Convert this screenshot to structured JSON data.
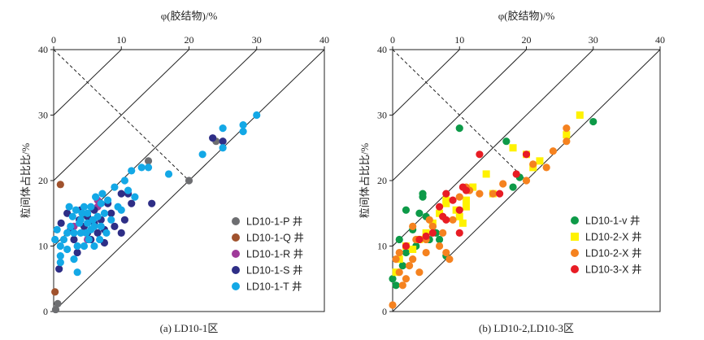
{
  "chart_data": [
    {
      "type": "scatter",
      "caption": "(a) LD10-1区",
      "xlabel": "φ(胶结物)/%",
      "ylabel": "粒间体占比比/%",
      "xlim": [
        0,
        40
      ],
      "ylim": [
        0,
        40
      ],
      "xticks": [
        "0",
        "10",
        "20",
        "30",
        "40"
      ],
      "yticks": [
        "0",
        "10",
        "20",
        "30",
        "40"
      ],
      "legend_position": "bottom-right",
      "series": [
        {
          "name": "LD10-1-P 井",
          "color": "#6d6e71",
          "shape": "circle",
          "points": [
            [
              0.3,
              0.3
            ],
            [
              0.6,
              1.2
            ],
            [
              14,
              23
            ],
            [
              20,
              20
            ],
            [
              24,
              26
            ]
          ]
        },
        {
          "name": "LD10-1-Q 井",
          "color": "#a0522d",
          "shape": "circle",
          "points": [
            [
              0.2,
              3
            ],
            [
              1,
              19.4
            ]
          ]
        },
        {
          "name": "LD10-1-R 井",
          "color": "#a03a9a",
          "shape": "circle",
          "points": [
            [
              3,
              13
            ],
            [
              5,
              11
            ],
            [
              6.5,
              16
            ],
            [
              6.5,
              17
            ]
          ]
        },
        {
          "name": "LD10-1-S 井",
          "color": "#2e2e86",
          "shape": "circle",
          "points": [
            [
              0.8,
              6.5
            ],
            [
              1.1,
              13.5
            ],
            [
              2,
              15
            ],
            [
              2.5,
              12.5
            ],
            [
              3,
              11
            ],
            [
              3.5,
              9
            ],
            [
              3.8,
              14
            ],
            [
              4,
              15.5
            ],
            [
              4.5,
              13
            ],
            [
              5,
              14.5
            ],
            [
              5,
              12
            ],
            [
              5.5,
              11
            ],
            [
              6,
              13.5
            ],
            [
              6,
              15.5
            ],
            [
              6.5,
              12
            ],
            [
              7,
              14
            ],
            [
              7.5,
              12.5
            ],
            [
              7.5,
              10.5
            ],
            [
              8,
              16.5
            ],
            [
              8.5,
              15
            ],
            [
              9,
              13
            ],
            [
              10,
              18
            ],
            [
              10,
              12
            ],
            [
              10.5,
              14
            ],
            [
              11,
              18
            ],
            [
              11.5,
              16.5
            ],
            [
              14.5,
              16.5
            ],
            [
              23.5,
              26.5
            ],
            [
              25,
              26
            ]
          ]
        },
        {
          "name": "LD10-1-T 井",
          "color": "#13a8e6",
          "shape": "circle",
          "points": [
            [
              0.2,
              11
            ],
            [
              0.5,
              12.5
            ],
            [
              1,
              10
            ],
            [
              1,
              8.5
            ],
            [
              1,
              7.5
            ],
            [
              1.5,
              11
            ],
            [
              2,
              9.5
            ],
            [
              2,
              12
            ],
            [
              2.3,
              16
            ],
            [
              2.5,
              13
            ],
            [
              2.8,
              14.5
            ],
            [
              3,
              8
            ],
            [
              3,
              12
            ],
            [
              3.3,
              15.5
            ],
            [
              3.5,
              6
            ],
            [
              3.5,
              10
            ],
            [
              3.8,
              13.5
            ],
            [
              4,
              12
            ],
            [
              4,
              14
            ],
            [
              4.2,
              15
            ],
            [
              4.5,
              10
            ],
            [
              4.5,
              16
            ],
            [
              4.8,
              12
            ],
            [
              5,
              13.5
            ],
            [
              5,
              15
            ],
            [
              5.2,
              11
            ],
            [
              5.5,
              12.5
            ],
            [
              5.5,
              16
            ],
            [
              5.8,
              14
            ],
            [
              6,
              10
            ],
            [
              6,
              13
            ],
            [
              6.2,
              17.5
            ],
            [
              6.5,
              14.5
            ],
            [
              6.8,
              11
            ],
            [
              7,
              16.5
            ],
            [
              7,
              13
            ],
            [
              7.2,
              18
            ],
            [
              7.5,
              15
            ],
            [
              7.8,
              12
            ],
            [
              8,
              17
            ],
            [
              8.5,
              14
            ],
            [
              9,
              19
            ],
            [
              9.5,
              16
            ],
            [
              10,
              15.5
            ],
            [
              10.5,
              20
            ],
            [
              11,
              18.5
            ],
            [
              11.5,
              21.5
            ],
            [
              12,
              17.5
            ],
            [
              13,
              22
            ],
            [
              14,
              22
            ],
            [
              17,
              21
            ],
            [
              22,
              24
            ],
            [
              25,
              25
            ],
            [
              25,
              28
            ],
            [
              28,
              27.5
            ],
            [
              28,
              28.5
            ],
            [
              30,
              30
            ]
          ]
        }
      ]
    },
    {
      "type": "scatter",
      "caption": "(b) LD10-2,LD10-3区",
      "xlabel": "φ(胶结物)/%",
      "ylabel": "粒间体占比比/%",
      "xlim": [
        0,
        40
      ],
      "ylim": [
        0,
        40
      ],
      "xticks": [
        "0",
        "10",
        "20",
        "30",
        "40"
      ],
      "yticks": [
        "0",
        "10",
        "20",
        "30",
        "40"
      ],
      "legend_position": "bottom-right",
      "series": [
        {
          "name": "LD10-1-v 井",
          "color": "#0d9a48",
          "shape": "circle",
          "points": [
            [
              0,
              5
            ],
            [
              0.5,
              4
            ],
            [
              1,
              11
            ],
            [
              1.5,
              7
            ],
            [
              2,
              9
            ],
            [
              2,
              15.5
            ],
            [
              3,
              12.5
            ],
            [
              3.5,
              10
            ],
            [
              4,
              15
            ],
            [
              4.5,
              17.5
            ],
            [
              4.5,
              18
            ],
            [
              5,
              14.5
            ],
            [
              5.5,
              11
            ],
            [
              6,
              13
            ],
            [
              6.5,
              12
            ],
            [
              7,
              11
            ],
            [
              8,
              8.5
            ],
            [
              10,
              28
            ],
            [
              17,
              26
            ],
            [
              18,
              19
            ],
            [
              19,
              20.5
            ],
            [
              30,
              29
            ]
          ]
        },
        {
          "name": "LD10-2-X 井",
          "color": "#fff200",
          "shape": "square",
          "points": [
            [
              0.5,
              6
            ],
            [
              1,
              8
            ],
            [
              2,
              10
            ],
            [
              3,
              9.5
            ],
            [
              4,
              11
            ],
            [
              5,
              12
            ],
            [
              6,
              13.5
            ],
            [
              7,
              15
            ],
            [
              8,
              16.5
            ],
            [
              8,
              17
            ],
            [
              9.5,
              15.5
            ],
            [
              10,
              14.5
            ],
            [
              10.5,
              13.5
            ],
            [
              11,
              16
            ],
            [
              11,
              17
            ],
            [
              12,
              19
            ],
            [
              14,
              21
            ],
            [
              15,
              18
            ],
            [
              18,
              25
            ],
            [
              20,
              24
            ],
            [
              21,
              22
            ],
            [
              22,
              23
            ],
            [
              26,
              27
            ],
            [
              28,
              30
            ]
          ]
        },
        {
          "name": "LD10-2-X 井",
          "color": "#f5821f",
          "shape": "circle",
          "points": [
            [
              0,
              1
            ],
            [
              0.5,
              8
            ],
            [
              1,
              6
            ],
            [
              1,
              9
            ],
            [
              1.5,
              4
            ],
            [
              2,
              5
            ],
            [
              2.5,
              7
            ],
            [
              3,
              8
            ],
            [
              3,
              13
            ],
            [
              3.5,
              11
            ],
            [
              4,
              6
            ],
            [
              5,
              9
            ],
            [
              5,
              11
            ],
            [
              5.5,
              14
            ],
            [
              6,
              13
            ],
            [
              7,
              10
            ],
            [
              7.5,
              12
            ],
            [
              8,
              9
            ],
            [
              8.5,
              8
            ],
            [
              9,
              14
            ],
            [
              10,
              17.5
            ],
            [
              11,
              19
            ],
            [
              11.5,
              18.5
            ],
            [
              13,
              18
            ],
            [
              15,
              18
            ],
            [
              16.5,
              19.5
            ],
            [
              20,
              20
            ],
            [
              21,
              22.5
            ],
            [
              23,
              22
            ],
            [
              24,
              24.5
            ],
            [
              26,
              26
            ],
            [
              26,
              28
            ]
          ]
        },
        {
          "name": "LD10-3-X 井",
          "color": "#e81c24",
          "shape": "circle",
          "points": [
            [
              2,
              10
            ],
            [
              4,
              11
            ],
            [
              5,
              11.5
            ],
            [
              6,
              12
            ],
            [
              7,
              16
            ],
            [
              7.5,
              14.5
            ],
            [
              8,
              14
            ],
            [
              8,
              18
            ],
            [
              9,
              17
            ],
            [
              10,
              12
            ],
            [
              10,
              15.5
            ],
            [
              10.5,
              19
            ],
            [
              11,
              18.5
            ],
            [
              13,
              24
            ],
            [
              16,
              18
            ],
            [
              18.5,
              21
            ],
            [
              20,
              24
            ]
          ]
        }
      ]
    }
  ]
}
